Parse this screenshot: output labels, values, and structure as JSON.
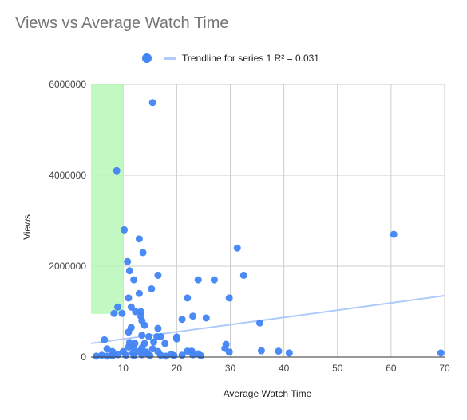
{
  "chart_data": {
    "type": "scatter",
    "title": "Views vs Average Watch Time",
    "xlabel": "Average Watch Time",
    "ylabel": "Views",
    "xlim": [
      4,
      70
    ],
    "ylim": [
      0,
      6000000
    ],
    "x_ticks": [
      "10",
      "20",
      "30",
      "40",
      "50",
      "60",
      "70"
    ],
    "x_tick_values": [
      10,
      20,
      30,
      40,
      50,
      60,
      70
    ],
    "y_ticks": [
      "0",
      "2000000",
      "4000000",
      "6000000"
    ],
    "y_tick_values": [
      0,
      2000000,
      4000000,
      6000000
    ],
    "grid": true,
    "legend_position": "top",
    "highlight_region": {
      "x": [
        4,
        10
      ],
      "y": [
        950000,
        6000000
      ],
      "color": "#b7f7b7"
    },
    "trendline": {
      "label": "Trendline for series 1 R² = 0.031",
      "x": [
        4,
        70
      ],
      "y": [
        300000,
        1350000
      ],
      "color": "#aecbfa"
    },
    "series": [
      {
        "color": "#4285f4",
        "points": [
          [
            15.5,
            5600000
          ],
          [
            8.8,
            4100000
          ],
          [
            10.2,
            2800000
          ],
          [
            13,
            2600000
          ],
          [
            13.7,
            2300000
          ],
          [
            60.5,
            2700000
          ],
          [
            31.3,
            2400000
          ],
          [
            10.8,
            2100000
          ],
          [
            11.2,
            1900000
          ],
          [
            16.5,
            1800000
          ],
          [
            32.5,
            1800000
          ],
          [
            12,
            1700000
          ],
          [
            24,
            1700000
          ],
          [
            27,
            1700000
          ],
          [
            15.3,
            1500000
          ],
          [
            13,
            1400000
          ],
          [
            11,
            1300000
          ],
          [
            22,
            1300000
          ],
          [
            29.8,
            1300000
          ],
          [
            9,
            1100000
          ],
          [
            11.5,
            1100000
          ],
          [
            8.3,
            960000
          ],
          [
            9.8,
            960000
          ],
          [
            12.3,
            1000000
          ],
          [
            13.3,
            1000000
          ],
          [
            13.3,
            900000
          ],
          [
            23,
            900000
          ],
          [
            25.5,
            860000
          ],
          [
            21,
            830000
          ],
          [
            13.5,
            800000
          ],
          [
            14,
            700000
          ],
          [
            11.5,
            650000
          ],
          [
            16.5,
            630000
          ],
          [
            35.5,
            750000
          ],
          [
            11,
            550000
          ],
          [
            13.5,
            480000
          ],
          [
            14.8,
            450000
          ],
          [
            16.3,
            450000
          ],
          [
            17,
            450000
          ],
          [
            20,
            440000
          ],
          [
            20,
            400000
          ],
          [
            6.5,
            380000
          ],
          [
            11.2,
            320000
          ],
          [
            12.2,
            300000
          ],
          [
            14,
            300000
          ],
          [
            15.7,
            330000
          ],
          [
            17.8,
            300000
          ],
          [
            29.2,
            280000
          ],
          [
            11,
            220000
          ],
          [
            7,
            180000
          ],
          [
            12,
            200000
          ],
          [
            13.5,
            200000
          ],
          [
            15.5,
            180000
          ],
          [
            29,
            190000
          ],
          [
            8,
            120000
          ],
          [
            10,
            120000
          ],
          [
            13,
            120000
          ],
          [
            14.3,
            110000
          ],
          [
            16.5,
            120000
          ],
          [
            22,
            130000
          ],
          [
            22.8,
            130000
          ],
          [
            29.8,
            110000
          ],
          [
            35.8,
            140000
          ],
          [
            39,
            130000
          ],
          [
            41,
            90000
          ],
          [
            69.3,
            90000
          ],
          [
            5,
            20000
          ],
          [
            6,
            40000
          ],
          [
            7,
            20000
          ],
          [
            8,
            30000
          ],
          [
            9,
            50000
          ],
          [
            10.5,
            40000
          ],
          [
            12,
            30000
          ],
          [
            13.5,
            50000
          ],
          [
            15,
            30000
          ],
          [
            17,
            40000
          ],
          [
            18,
            20000
          ],
          [
            19.5,
            30000
          ],
          [
            21,
            40000
          ],
          [
            23,
            50000
          ],
          [
            24.5,
            30000
          ],
          [
            11.8,
            90000
          ],
          [
            14.5,
            80000
          ],
          [
            19,
            60000
          ],
          [
            24,
            70000
          ]
        ]
      }
    ]
  }
}
